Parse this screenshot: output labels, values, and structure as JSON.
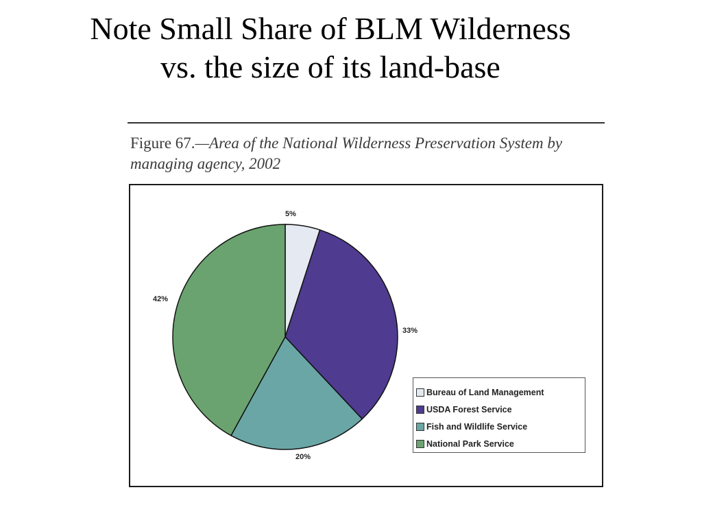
{
  "slide": {
    "title_line1": "Note Small Share of BLM Wilderness",
    "title_line2": "vs. the size of its land-base"
  },
  "figure": {
    "label": "Figure 67.",
    "caption": "—Area of the National Wilderness Preservation System by managing agency, 2002"
  },
  "chart_data": {
    "type": "pie",
    "title": "Area of the National Wilderness Preservation System by managing agency, 2002",
    "categories": [
      "Bureau of Land Management",
      "USDA Forest Service",
      "Fish and Wildlife Service",
      "National Park Service"
    ],
    "values": [
      5,
      33,
      20,
      42
    ],
    "labels": [
      "5%",
      "33%",
      "20%",
      "42%"
    ],
    "colors": [
      "#e4e9f2",
      "#4f3b8f",
      "#6aa6a6",
      "#6aa36f"
    ],
    "unit": "percent",
    "legend_position": "bottom-right"
  }
}
